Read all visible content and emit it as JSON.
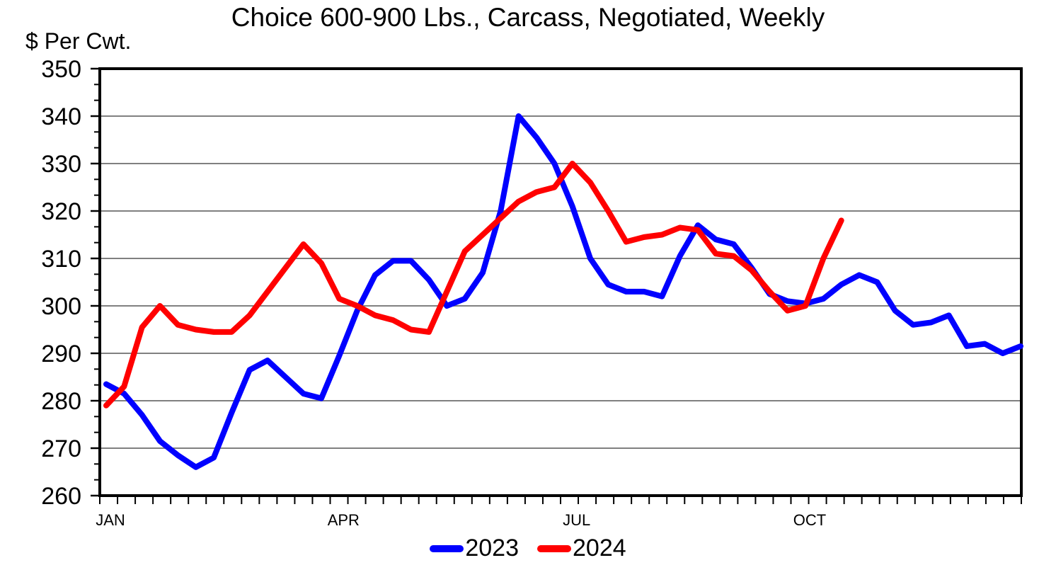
{
  "title": "Choice 600-900 Lbs., Carcass, Negotiated, Weekly",
  "y_axis_label": "$ Per Cwt.",
  "style": {
    "background": "#FFFFFF",
    "grid_color": "#808080",
    "axis_color": "#000000",
    "text_color": "#000000",
    "series_2023_color": "#0000FF",
    "series_2024_color": "#FF0000"
  },
  "legend": {
    "position": "bottom-center",
    "items": [
      {
        "label": "2023",
        "color": "#0000FF"
      },
      {
        "label": "2024",
        "color": "#FF0000"
      }
    ]
  },
  "chart_data": {
    "type": "line",
    "title": "Choice 600-900 Lbs., Carcass, Negotiated, Weekly",
    "ylabel": "$ Per Cwt.",
    "ylim": [
      260,
      350
    ],
    "y_tick_interval": 10,
    "y_tick_values": [
      350,
      340,
      330,
      320,
      310,
      300,
      290,
      280,
      270,
      260
    ],
    "y_minor_ticks_per_major_gap": 2,
    "grid": "horizontal-major-only",
    "x_unit": "week-of-year",
    "x_range_weeks": [
      1,
      52
    ],
    "x_weekly_minor_ticks": true,
    "x_month_labels": [
      {
        "label": "JAN",
        "week": 1
      },
      {
        "label": "APR",
        "week": 14
      },
      {
        "label": "JUL",
        "week": 27
      },
      {
        "label": "OCT",
        "week": 40
      }
    ],
    "legend_position": "bottom-center",
    "series": [
      {
        "name": "2023",
        "color": "#0000FF",
        "start_week": 1,
        "values": [
          283.5,
          281.5,
          277,
          271.5,
          268.5,
          266,
          268,
          277.5,
          286.5,
          288.5,
          285,
          281.5,
          280.5,
          289.5,
          299,
          306.5,
          309.5,
          309.5,
          305.5,
          300,
          301.5,
          307,
          320,
          340,
          335.5,
          330,
          321,
          310,
          304.5,
          303,
          303,
          302,
          310.5,
          317,
          314,
          313,
          308,
          302.5,
          301,
          300.5,
          301.5,
          304.5,
          306.5,
          305,
          299,
          296,
          296.5,
          298,
          291.5,
          292,
          290,
          291.5
        ]
      },
      {
        "name": "2024",
        "color": "#FF0000",
        "start_week": 1,
        "values": [
          279,
          283,
          295.5,
          300,
          296,
          295,
          294.5,
          294.5,
          298,
          303,
          308,
          313,
          309,
          301.5,
          300,
          298,
          297,
          295,
          294.5,
          303,
          311.5,
          315,
          318.5,
          322,
          324,
          325,
          330,
          326,
          320,
          313.5,
          314.5,
          315,
          316.5,
          316,
          311,
          310.5,
          307.5,
          303,
          299,
          300,
          310,
          318
        ]
      }
    ]
  }
}
